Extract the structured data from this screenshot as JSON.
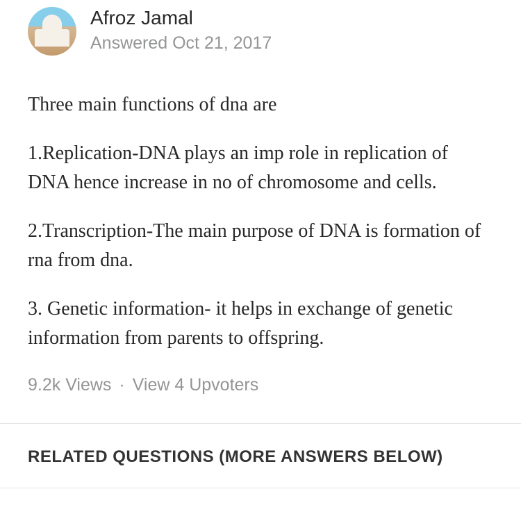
{
  "author": {
    "name": "Afroz Jamal",
    "answered_date": "Answered Oct 21, 2017"
  },
  "answer": {
    "paragraphs": [
      "Three main functions of dna are",
      "1.Replication-DNA plays an imp role in replication of DNA hence increase in no of chromosome and cells.",
      "2.Transcription-The main purpose of DNA is formation of rna from dna.",
      "3. Genetic information- it helps in exchange of genetic information from parents to offspring."
    ]
  },
  "stats": {
    "views": "9.2k Views",
    "separator": "·",
    "upvoters": "View 4 Upvoters"
  },
  "related": {
    "header": "RELATED QUESTIONS (MORE ANSWERS BELOW)"
  }
}
